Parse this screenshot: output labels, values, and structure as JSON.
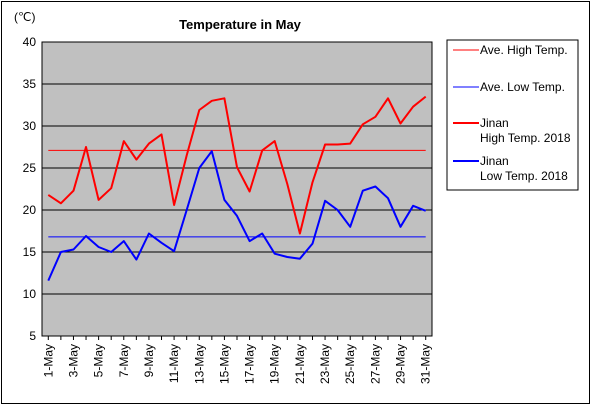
{
  "chart_data": {
    "type": "line",
    "title": "Temperature in May",
    "unit_label": "(℃)",
    "ylim": [
      5,
      40
    ],
    "yticks": [
      5,
      10,
      15,
      20,
      25,
      30,
      35,
      40
    ],
    "x": [
      "1-May",
      "2-May",
      "3-May",
      "4-May",
      "5-May",
      "6-May",
      "7-May",
      "8-May",
      "9-May",
      "10-May",
      "11-May",
      "12-May",
      "13-May",
      "14-May",
      "15-May",
      "16-May",
      "17-May",
      "18-May",
      "19-May",
      "20-May",
      "21-May",
      "22-May",
      "23-May",
      "24-May",
      "25-May",
      "26-May",
      "27-May",
      "28-May",
      "29-May",
      "30-May",
      "31-May"
    ],
    "xtick_labels": [
      "1-May",
      "3-May",
      "5-May",
      "7-May",
      "9-May",
      "11-May",
      "13-May",
      "15-May",
      "17-May",
      "19-May",
      "21-May",
      "23-May",
      "25-May",
      "27-May",
      "29-May",
      "31-May"
    ],
    "plot_background": "#c0c0c0",
    "grid": true,
    "legend_position": "right",
    "series": [
      {
        "name": "Ave. High Temp.",
        "color": "#ff0000",
        "style": "thin",
        "values": [
          27.1,
          27.1,
          27.1,
          27.1,
          27.1,
          27.1,
          27.1,
          27.1,
          27.1,
          27.1,
          27.1,
          27.1,
          27.1,
          27.1,
          27.1,
          27.1,
          27.1,
          27.1,
          27.1,
          27.1,
          27.1,
          27.1,
          27.1,
          27.1,
          27.1,
          27.1,
          27.1,
          27.1,
          27.1,
          27.1,
          27.1
        ]
      },
      {
        "name": "Ave. Low Temp.",
        "color": "#0000ff",
        "style": "thin",
        "values": [
          16.8,
          16.8,
          16.8,
          16.8,
          16.8,
          16.8,
          16.8,
          16.8,
          16.8,
          16.8,
          16.8,
          16.8,
          16.8,
          16.8,
          16.8,
          16.8,
          16.8,
          16.8,
          16.8,
          16.8,
          16.8,
          16.8,
          16.8,
          16.8,
          16.8,
          16.8,
          16.8,
          16.8,
          16.8,
          16.8,
          16.8
        ]
      },
      {
        "name": "Jinan High Temp. 2018",
        "name_lines": [
          "Jinan",
          "High Temp. 2018"
        ],
        "color": "#ff0000",
        "style": "thick",
        "values": [
          21.8,
          20.8,
          22.3,
          27.5,
          21.2,
          22.6,
          28.2,
          26.0,
          27.9,
          29.0,
          20.6,
          26.5,
          31.9,
          33.0,
          33.3,
          25.1,
          22.2,
          27.1,
          28.2,
          23.1,
          17.2,
          23.3,
          27.8,
          27.8,
          27.9,
          30.2,
          31.1,
          33.3,
          30.3,
          32.3,
          33.5
        ]
      },
      {
        "name": "Jinan Low Temp. 2018",
        "name_lines": [
          "Jinan",
          "Low Temp. 2018"
        ],
        "color": "#0000ff",
        "style": "thick",
        "values": [
          11.6,
          15.0,
          15.3,
          16.9,
          15.6,
          15.0,
          16.3,
          14.1,
          17.2,
          16.1,
          15.1,
          20.0,
          25.0,
          27.0,
          21.2,
          19.3,
          16.3,
          17.2,
          14.8,
          14.4,
          14.2,
          16.0,
          21.1,
          20.0,
          18.0,
          22.3,
          22.8,
          21.4,
          18.0,
          20.5,
          19.9
        ]
      }
    ]
  }
}
